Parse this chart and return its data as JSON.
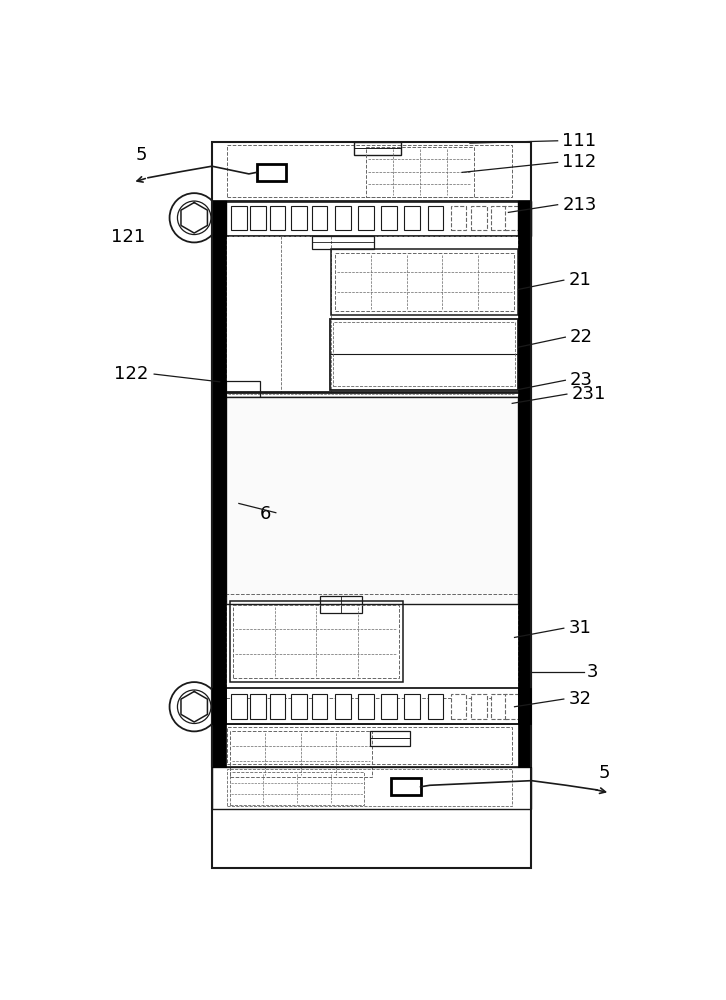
{
  "bg": "#ffffff",
  "lc": "#1a1a1a",
  "bc": "#000000",
  "dc": "#666666",
  "figsize": [
    7.26,
    10.0
  ],
  "dpi": 100,
  "labels": {
    "5_top": "5",
    "111": "111",
    "112": "112",
    "213": "213",
    "121": "121",
    "21": "21",
    "22": "22",
    "23": "23",
    "231": "231",
    "122": "122",
    "6": "6",
    "31": "31",
    "3": "3",
    "32": "32",
    "5_bot": "5"
  }
}
